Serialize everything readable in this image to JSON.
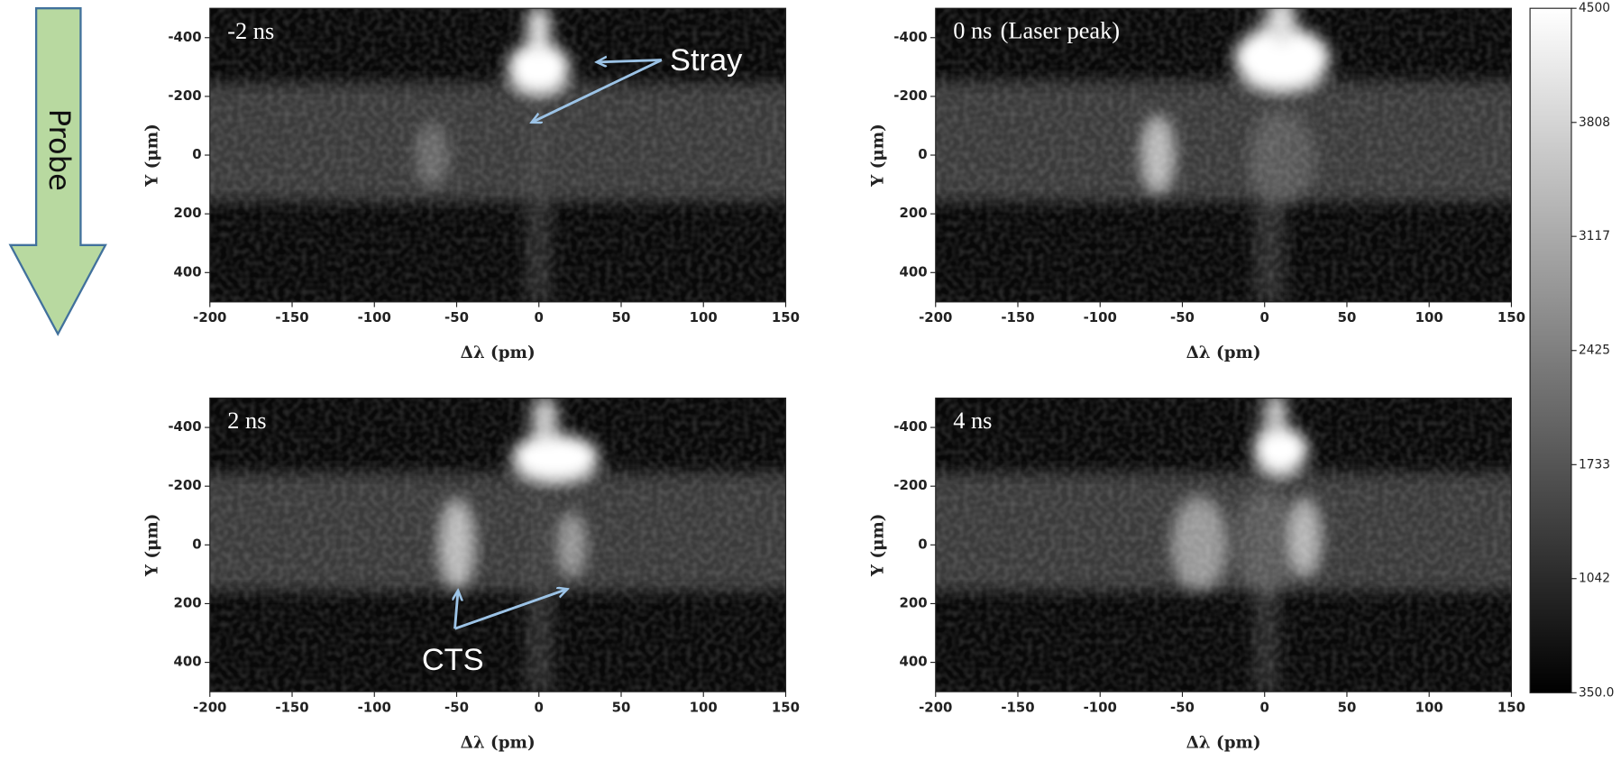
{
  "chart_data": [
    {
      "type": "heatmap",
      "title": "-2 ns",
      "xlabel": "Δλ (pm)",
      "ylabel": "Y (μm)",
      "xlim": [
        -200,
        150
      ],
      "ylim": [
        -500,
        500
      ],
      "yinvert": true,
      "xticks": [
        -200,
        -150,
        -100,
        -50,
        0,
        50,
        100,
        150
      ],
      "yticks": [
        -400,
        -200,
        0,
        200,
        400
      ],
      "annotations": [
        "Stray"
      ]
    },
    {
      "type": "heatmap",
      "title": "0 ns",
      "subtitle": "(Laser peak)",
      "xlabel": "Δλ (pm)",
      "ylabel": "Y (μm)",
      "xlim": [
        -200,
        150
      ],
      "ylim": [
        -500,
        500
      ],
      "yinvert": true,
      "xticks": [
        -200,
        -150,
        -100,
        -50,
        0,
        50,
        100,
        150
      ],
      "yticks": [
        -400,
        -200,
        0,
        200,
        400
      ]
    },
    {
      "type": "heatmap",
      "title": "2 ns",
      "xlabel": "Δλ (pm)",
      "ylabel": "Y (μm)",
      "xlim": [
        -200,
        150
      ],
      "ylim": [
        -500,
        500
      ],
      "yinvert": true,
      "xticks": [
        -200,
        -150,
        -100,
        -50,
        0,
        50,
        100,
        150
      ],
      "yticks": [
        -400,
        -200,
        0,
        200,
        400
      ],
      "annotations": [
        "CTS"
      ]
    },
    {
      "type": "heatmap",
      "title": "4 ns",
      "xlabel": "Δλ (pm)",
      "ylabel": "Y (μm)",
      "xlim": [
        -200,
        150
      ],
      "ylim": [
        -500,
        500
      ],
      "yinvert": true,
      "xticks": [
        -200,
        -150,
        -100,
        -50,
        0,
        50,
        100,
        150
      ],
      "yticks": [
        -400,
        -200,
        0,
        200,
        400
      ]
    }
  ],
  "colorbar": {
    "lim": [
      350,
      4500
    ],
    "ticks": [
      {
        "value": 350,
        "label": "350.0"
      },
      1042,
      1733,
      2425,
      3117,
      3808,
      4500
    ],
    "colors": [
      "#000000",
      "#ffffff"
    ]
  },
  "probe_label": "Probe"
}
